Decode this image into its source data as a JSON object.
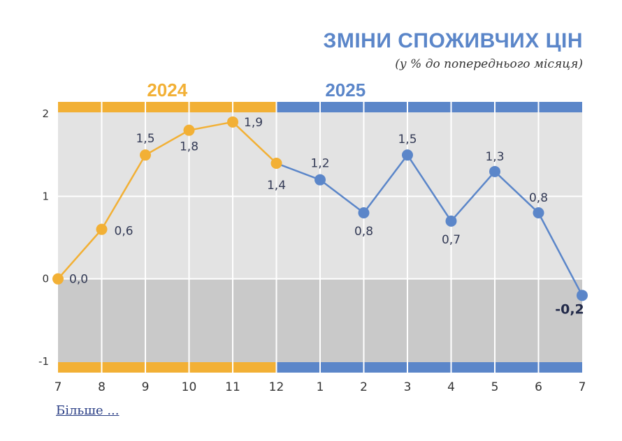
{
  "header": {
    "title": "ЗМІНИ СПОЖИВЧИХ ЦІН",
    "subtitle": "(у % до попереднього місяця)"
  },
  "footer": {
    "more_link": "Більше ..."
  },
  "colors": {
    "orange": "#f2b035",
    "blue": "#5b86c9",
    "plot_upper": "#e3e3e3",
    "plot_lower": "#c9c9c9",
    "grid": "#ffffff",
    "label_text": "#333a55"
  },
  "chart_data": {
    "type": "line",
    "title": "ЗМІНИ СПОЖИВЧИХ ЦІН",
    "subtitle": "(у % до попереднього місяця)",
    "ylim": [
      -1,
      2
    ],
    "yticks": [
      "2",
      "1",
      "0",
      "-1"
    ],
    "year_groups": [
      {
        "label": "2024",
        "months": [
          "7",
          "8",
          "9",
          "10",
          "11",
          "12"
        ],
        "color": "#f2b035"
      },
      {
        "label": "2025",
        "months": [
          "1",
          "2",
          "3",
          "4",
          "5",
          "6",
          "7"
        ],
        "color": "#5b86c9"
      }
    ],
    "categories": [
      "7",
      "8",
      "9",
      "10",
      "11",
      "12",
      "1",
      "2",
      "3",
      "4",
      "5",
      "6",
      "7"
    ],
    "values": [
      0.0,
      0.6,
      1.5,
      1.8,
      1.9,
      1.4,
      1.2,
      0.8,
      1.5,
      0.7,
      1.3,
      0.8,
      -0.2
    ],
    "value_labels": [
      "0,0",
      "0,6",
      "1,5",
      "1,8",
      "1,9",
      "1,4",
      "1,2",
      "0,8",
      "1,5",
      "0,7",
      "1,3",
      "0,8",
      "-0,2"
    ],
    "grid": true
  }
}
